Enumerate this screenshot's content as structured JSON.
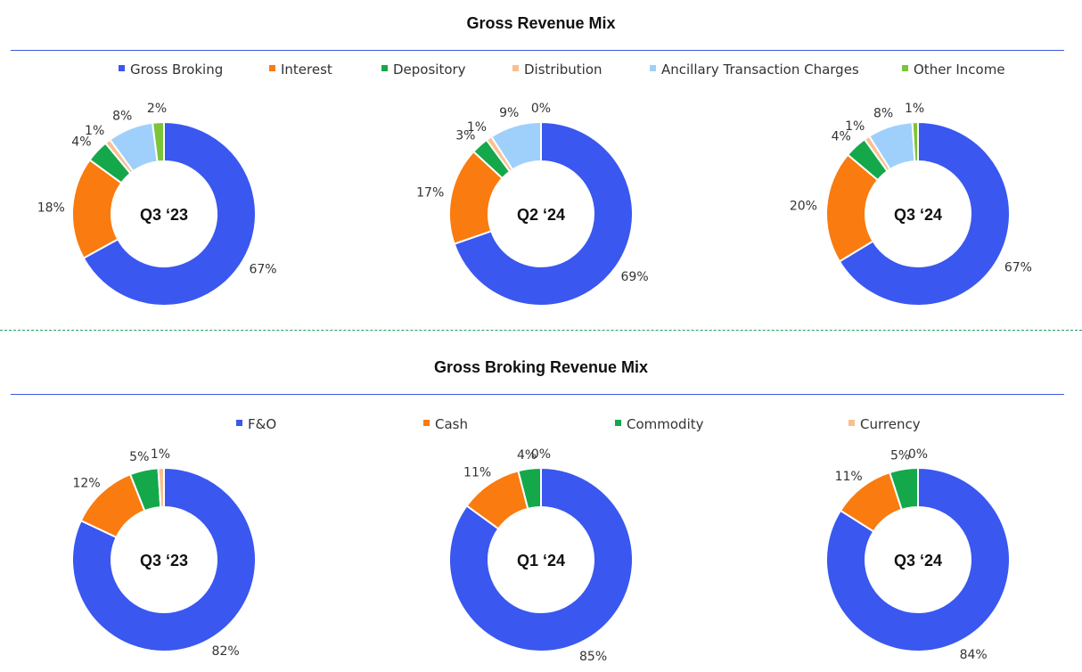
{
  "section1": {
    "title": "Gross Revenue Mix"
  },
  "section2": {
    "title": "Gross Broking Revenue Mix"
  },
  "colors": {
    "Gross Broking": "#3a57f0",
    "Interest": "#fa7b0f",
    "Depository": "#14a84b",
    "Distribution": "#f9c08e",
    "Ancillary Transaction Charges": "#9fd0fb",
    "Other Income": "#7cc43a",
    "F&O": "#3a57f0",
    "Cash": "#fa7b0f",
    "Commodity": "#14a84b",
    "Currency": "#f9c08e"
  },
  "chart_data": [
    {
      "type": "pie",
      "donut": true,
      "center_label": "Q3 ‘23",
      "categories": [
        "Gross Broking",
        "Interest",
        "Depository",
        "Distribution",
        "Ancillary Transaction Charges",
        "Other Income"
      ],
      "values": [
        67,
        18,
        4,
        1,
        8,
        2
      ]
    },
    {
      "type": "pie",
      "donut": true,
      "center_label": "Q2 ‘24",
      "categories": [
        "Gross Broking",
        "Interest",
        "Depository",
        "Distribution",
        "Ancillary Transaction Charges",
        "Other Income"
      ],
      "values": [
        69,
        17,
        3,
        1,
        9,
        0
      ]
    },
    {
      "type": "pie",
      "donut": true,
      "center_label": "Q3 ‘24",
      "categories": [
        "Gross Broking",
        "Interest",
        "Depository",
        "Distribution",
        "Ancillary Transaction Charges",
        "Other Income"
      ],
      "values": [
        67,
        20,
        4,
        1,
        8,
        1
      ]
    },
    {
      "type": "pie",
      "donut": true,
      "center_label": "Q3 ‘23",
      "categories": [
        "F&O",
        "Cash",
        "Commodity",
        "Currency"
      ],
      "values": [
        82,
        12,
        5,
        1
      ]
    },
    {
      "type": "pie",
      "donut": true,
      "center_label": "Q1 ‘24",
      "categories": [
        "F&O",
        "Cash",
        "Commodity",
        "Currency"
      ],
      "values": [
        85,
        11,
        4,
        0
      ]
    },
    {
      "type": "pie",
      "donut": true,
      "center_label": "Q3 ‘24",
      "categories": [
        "F&O",
        "Cash",
        "Commodity",
        "Currency"
      ],
      "values": [
        84,
        11,
        5,
        0
      ]
    }
  ],
  "legend1": [
    "Gross Broking",
    "Interest",
    "Depository",
    "Distribution",
    "Ancillary Transaction Charges",
    "Other Income"
  ],
  "legend2": [
    "F&O",
    "Cash",
    "Commodity",
    "Currency"
  ]
}
